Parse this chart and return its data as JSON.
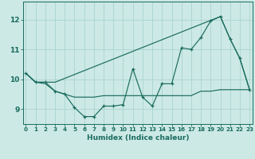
{
  "title": "",
  "xlabel": "Humidex (Indice chaleur)",
  "bg_color": "#cce9e5",
  "line_color": "#1a6b5e",
  "grid_color": "#aad4cf",
  "x_ticks": [
    0,
    1,
    2,
    3,
    4,
    5,
    6,
    7,
    8,
    9,
    10,
    11,
    12,
    13,
    14,
    15,
    16,
    17,
    18,
    19,
    20,
    21,
    22,
    23
  ],
  "y_ticks": [
    9,
    10,
    11,
    12
  ],
  "ylim": [
    8.5,
    12.6
  ],
  "xlim": [
    -0.3,
    23.3
  ],
  "series1_x": [
    0,
    1,
    2,
    3,
    4,
    5,
    6,
    7,
    8,
    9,
    10,
    11,
    12,
    13,
    14,
    15,
    16,
    17,
    18,
    19,
    20,
    21,
    22,
    23
  ],
  "series1_y": [
    10.2,
    9.9,
    9.9,
    9.6,
    9.5,
    9.05,
    8.75,
    8.75,
    9.1,
    9.1,
    9.15,
    10.35,
    9.4,
    9.1,
    9.85,
    9.85,
    11.05,
    11.0,
    11.4,
    11.95,
    12.1,
    11.35,
    10.7,
    9.65
  ],
  "series2_x": [
    0,
    1,
    2,
    3,
    4,
    5,
    6,
    7,
    8,
    9,
    10,
    11,
    12,
    13,
    14,
    15,
    16,
    17,
    18,
    19,
    20,
    21,
    22,
    23
  ],
  "series2_y": [
    10.2,
    9.9,
    9.85,
    9.6,
    9.5,
    9.4,
    9.4,
    9.4,
    9.45,
    9.45,
    9.45,
    9.45,
    9.45,
    9.45,
    9.45,
    9.45,
    9.45,
    9.45,
    9.6,
    9.6,
    9.65,
    9.65,
    9.65,
    9.65
  ],
  "series3_x": [
    0,
    1,
    3,
    20,
    21,
    22,
    23
  ],
  "series3_y": [
    10.2,
    9.9,
    9.9,
    12.1,
    11.35,
    10.7,
    9.65
  ]
}
